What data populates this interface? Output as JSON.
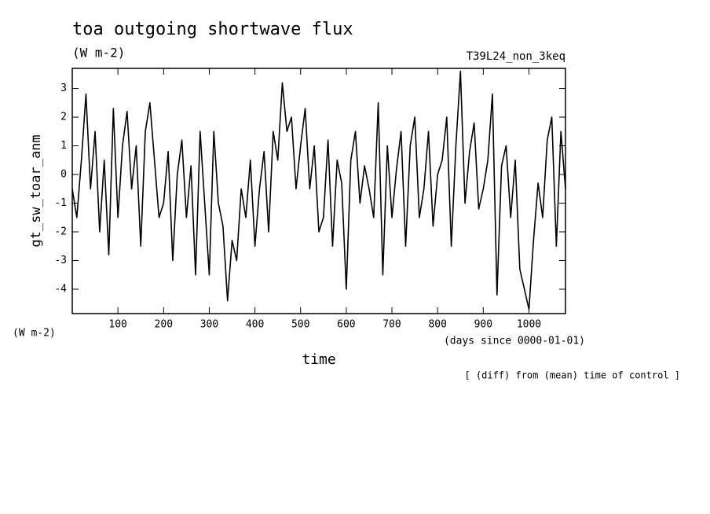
{
  "chart_data": {
    "type": "line",
    "title": "toa outgoing shortwave flux",
    "subtitle": "(W m-2)",
    "run_label": "T39L24_non_3keq",
    "y_label": "gt_sw_toar_anm",
    "y_units": "(W m-2)",
    "x_label": "time",
    "x_units": "(days since 0000-01-01)",
    "annotation": "[ (diff) from (mean) time of control ]",
    "x": [
      0,
      10,
      20,
      30,
      40,
      50,
      60,
      70,
      80,
      90,
      100,
      110,
      120,
      130,
      140,
      150,
      160,
      170,
      180,
      190,
      200,
      210,
      220,
      230,
      240,
      250,
      260,
      270,
      280,
      290,
      300,
      310,
      320,
      330,
      340,
      350,
      360,
      370,
      380,
      390,
      400,
      410,
      420,
      430,
      440,
      450,
      460,
      470,
      480,
      490,
      500,
      510,
      520,
      530,
      540,
      550,
      560,
      570,
      580,
      590,
      600,
      610,
      620,
      630,
      640,
      650,
      660,
      670,
      680,
      690,
      700,
      710,
      720,
      730,
      740,
      750,
      760,
      770,
      780,
      790,
      800,
      810,
      820,
      830,
      840,
      850,
      860,
      870,
      880,
      890,
      900,
      910,
      920,
      930,
      940,
      950,
      960,
      970,
      980,
      990,
      1000,
      1010,
      1020,
      1030,
      1040,
      1050,
      1060,
      1070,
      1080
    ],
    "series": [
      {
        "name": "gt_sw_toar_anm",
        "color": "#000000",
        "values": [
          -0.5,
          -1.5,
          0.5,
          2.8,
          -0.5,
          1.5,
          -2,
          0.5,
          -2.8,
          2.3,
          -1.5,
          1,
          2.2,
          -0.5,
          1,
          -2.5,
          1.5,
          2.5,
          0.5,
          -1.5,
          -1,
          0.8,
          -3,
          0,
          1.2,
          -1.5,
          0.3,
          -3.5,
          1.5,
          -1,
          -3.5,
          1.5,
          -1,
          -1.8,
          -4.4,
          -2.3,
          -3,
          -0.5,
          -1.5,
          0.5,
          -2.5,
          -0.5,
          0.8,
          -2,
          1.5,
          0.5,
          3.2,
          1.5,
          2,
          -0.5,
          1,
          2.3,
          -0.5,
          1,
          -2,
          -1.5,
          1.2,
          -2.5,
          0.5,
          -0.3,
          -4,
          0.5,
          1.5,
          -1,
          0.3,
          -0.5,
          -1.5,
          2.5,
          -3.5,
          1,
          -1.5,
          0.2,
          1.5,
          -2.5,
          1,
          2,
          -1.5,
          -0.5,
          1.5,
          -1.8,
          0,
          0.5,
          2,
          -2.5,
          1,
          3.6,
          -1,
          0.8,
          1.8,
          -1.2,
          -0.5,
          0.5,
          2.8,
          -4.2,
          0.3,
          1,
          -1.5,
          0.5,
          -3.3,
          -4,
          -4.7,
          -2.3,
          -0.3,
          -1.5,
          1.2,
          2,
          -2.5,
          1.5,
          -0.5
        ]
      }
    ],
    "xlim": [
      0,
      1080
    ],
    "xticks": [
      100,
      200,
      300,
      400,
      500,
      600,
      700,
      800,
      900,
      1000
    ],
    "ylim": [
      -4.85,
      3.7
    ],
    "yticks": [
      -4,
      -3,
      -2,
      -1,
      0,
      1,
      2,
      3
    ]
  }
}
